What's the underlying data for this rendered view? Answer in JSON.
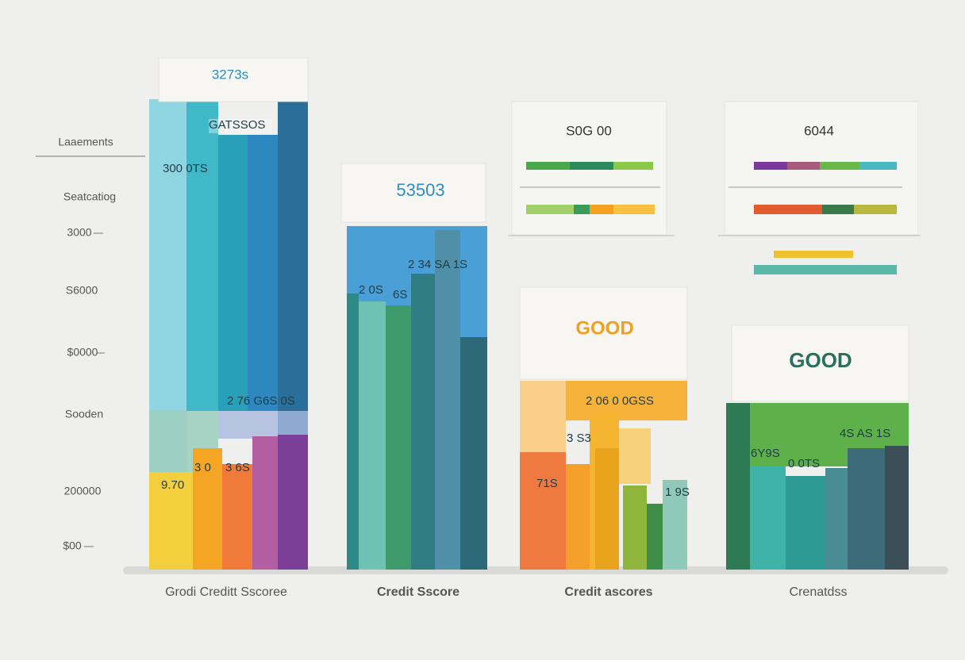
{
  "side_labels": [
    "Laaements",
    "Seatcatiog",
    "3000",
    "S6000",
    "$0000",
    "Sooden",
    "200000",
    "$00"
  ],
  "columns": [
    {
      "header": "3273s",
      "labels": [
        "GATSSOS",
        "300 0TS",
        "2 76 G6S 0S",
        "9.70",
        "3 0",
        "3 6S"
      ],
      "caption": "Grodi Creditt Sscoree"
    },
    {
      "header": "53503",
      "labels": [
        "2 34 SA 1S",
        "2 0S",
        "6S"
      ],
      "caption": "Credit Sscore"
    },
    {
      "header": "GOOD",
      "labels": [
        "2 06 0 0GSS",
        "3 S3",
        "71S",
        "1 9S"
      ],
      "caption": "Credit ascores"
    },
    {
      "header": "GOOD",
      "labels": [
        "4S AS 1S",
        "6Y9S",
        "0 0TS"
      ],
      "caption": "Crenatdss"
    }
  ],
  "panels": [
    {
      "title": "S0G 00"
    },
    {
      "title": "6044"
    }
  ]
}
